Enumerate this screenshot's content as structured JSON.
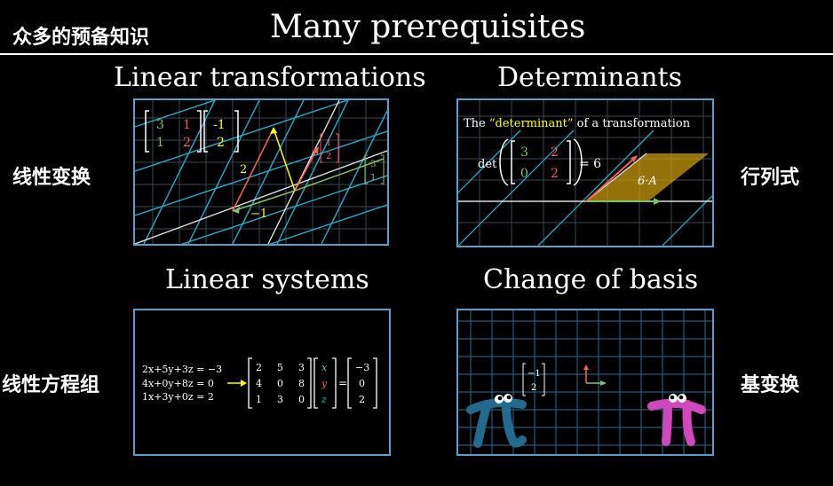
{
  "header": {
    "cn_title": "众多的预备知识",
    "title": "Many prerequisites"
  },
  "panels": [
    {
      "label": "Linear transformations",
      "cn_label": "线性变换"
    },
    {
      "label": "Determinants",
      "cn_label": "行列式"
    },
    {
      "label": "Linear systems",
      "cn_label": "线性方程组"
    },
    {
      "label": "Change of basis",
      "cn_label": "基变换"
    }
  ],
  "linear_transformations": {
    "matrix": [
      [
        "3",
        "1"
      ],
      [
        "1",
        "2"
      ]
    ],
    "vector": [
      "-1",
      "2"
    ],
    "result_vector": [
      "1",
      "2"
    ],
    "right_vector": [
      "3",
      "1"
    ],
    "axis_label_2": "2",
    "axis_label_neg1": "−1"
  },
  "determinants": {
    "caption_prefix": "The ",
    "caption_highlight": "“determinant”",
    "caption_suffix": " of a transformation",
    "det_word": "det",
    "matrix": [
      [
        "3",
        "2"
      ],
      [
        "0",
        "2"
      ]
    ],
    "equals": "= 6",
    "area_label": "6·A"
  },
  "linear_systems": {
    "equations": [
      "2x+5y+3z = −3",
      "4x+0y+8z = 0",
      "1x+3y+0z = 2"
    ],
    "matrix": [
      [
        "2",
        "5",
        "3"
      ],
      [
        "4",
        "0",
        "8"
      ],
      [
        "1",
        "3",
        "0"
      ]
    ],
    "vars": [
      "x",
      "y",
      "z"
    ],
    "rhs": [
      "−3",
      "0",
      "2"
    ]
  },
  "change_of_basis": {
    "vector": [
      "−1",
      "2"
    ]
  },
  "colors": {
    "panel_border": "#5aa0cc",
    "green": "#83c167",
    "red": "#fc6255",
    "yellow": "#ffff00",
    "blue_grid": "#29abca",
    "gold_area": "#c79a0e",
    "pi_blue": "#236b8e",
    "pi_pink": "#d147bd"
  }
}
